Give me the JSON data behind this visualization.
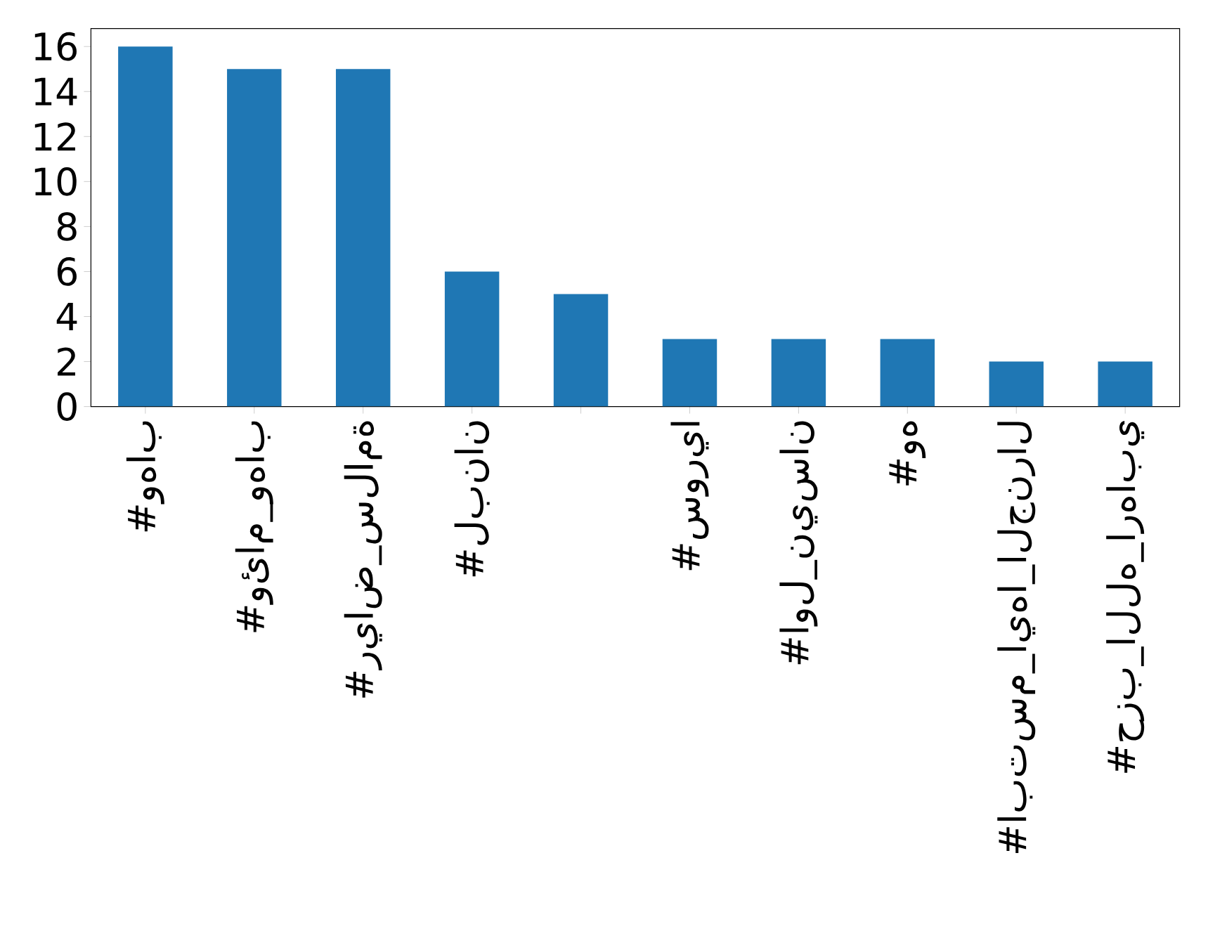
{
  "chart_data": {
    "type": "bar",
    "categories": [
      "#وهاب",
      "#وئام_وهاب",
      "#رياض_سلامة",
      "#لبنان",
      null,
      "#سوريا",
      "#اول_نيسان",
      "#وه",
      "#ابتسم_ايها_الجنرال",
      "#حزب_الله_ارهابي"
    ],
    "values": [
      16,
      15,
      15,
      6,
      5,
      3,
      3,
      3,
      2,
      2
    ],
    "color": "#1f77b4",
    "ylim": [
      0,
      16.8
    ],
    "yticks": [
      0,
      2,
      4,
      6,
      8,
      10,
      12,
      14,
      16
    ],
    "grid": false
  }
}
